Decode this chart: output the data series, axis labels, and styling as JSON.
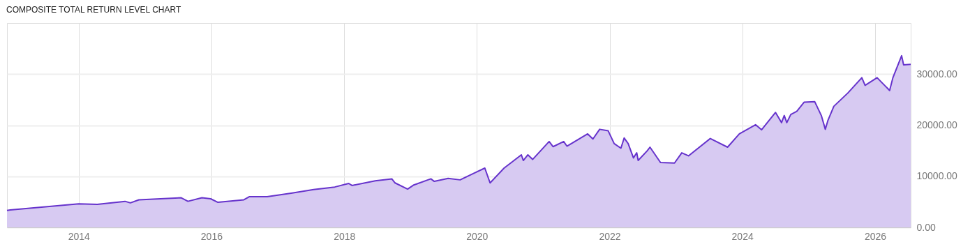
{
  "chart_data": {
    "type": "area",
    "title": "COMPOSITE TOTAL RETURN LEVEL CHART",
    "x": [
      "2012-12-02",
      "2012-12-20",
      "2014-01-01",
      "2014-04-13",
      "2014-09-13",
      "2014-10-12",
      "2014-11-28",
      "2015-07-19",
      "2015-08-25",
      "2015-11-10",
      "2015-12-28",
      "2016-02-06",
      "2016-06-28",
      "2016-07-27",
      "2016-11-03",
      "2017-03-15",
      "2017-07-17",
      "2017-11-10",
      "2018-01-26",
      "2018-02-13",
      "2018-06-21",
      "2018-09-20",
      "2018-10-08",
      "2018-12-16",
      "2019-01-19",
      "2019-04-23",
      "2019-05-12",
      "2019-07-27",
      "2019-10-01",
      "2019-12-16",
      "2020-02-14",
      "2020-03-14",
      "2020-05-30",
      "2020-09-02",
      "2020-09-13",
      "2020-10-08",
      "2020-11-03",
      "2021-02-02",
      "2021-02-24",
      "2021-04-23",
      "2021-05-11",
      "2021-09-02",
      "2021-10-01",
      "2021-11-07",
      "2021-12-24",
      "2022-01-26",
      "2022-03-04",
      "2022-03-22",
      "2022-04-13",
      "2022-05-12",
      "2022-05-30",
      "2022-06-07",
      "2022-07-27",
      "2022-08-11",
      "2022-10-08",
      "2022-12-24",
      "2023-02-02",
      "2023-03-11",
      "2023-07-09",
      "2023-10-12",
      "2023-12-16",
      "2024-03-14",
      "2024-04-16",
      "2024-07-02",
      "2024-08-04",
      "2024-08-19",
      "2024-09-02",
      "2024-09-24",
      "2024-10-27",
      "2024-12-06",
      "2025-02-03",
      "2025-03-11",
      "2025-04-02",
      "2025-04-16",
      "2025-05-19",
      "2025-08-04",
      "2025-10-20",
      "2025-11-07",
      "2026-01-12",
      "2026-03-22",
      "2026-04-09",
      "2026-05-27",
      "2026-06-07",
      "2026-07-16"
    ],
    "series": [
      {
        "color": "#6633cc",
        "values": [
          3300,
          3400,
          4600,
          4500,
          5100,
          4800,
          5400,
          5800,
          5100,
          5800,
          5600,
          4900,
          5400,
          6000,
          6000,
          6700,
          7400,
          7900,
          8600,
          8200,
          9100,
          9500,
          8700,
          7500,
          8300,
          9500,
          9000,
          9600,
          9300,
          10600,
          11600,
          8700,
          11600,
          14200,
          13100,
          14200,
          13300,
          16800,
          15800,
          16800,
          15900,
          18300,
          17300,
          19200,
          18900,
          16400,
          15500,
          17500,
          16400,
          13600,
          14600,
          13100,
          15000,
          15700,
          12700,
          12600,
          14600,
          14000,
          17400,
          15700,
          18300,
          20100,
          19100,
          22500,
          20500,
          21900,
          20500,
          22100,
          22700,
          24500,
          24600,
          21900,
          19200,
          20900,
          23700,
          26300,
          29300,
          27800,
          29300,
          26800,
          29300,
          33600,
          31800,
          31900
        ]
      }
    ],
    "xlim": [
      "2012-12-02",
      "2026-07-16"
    ],
    "xticks": [
      "2014",
      "2016",
      "2018",
      "2020",
      "2022",
      "2024",
      "2026"
    ],
    "ylim": [
      0,
      40000
    ],
    "yticks": [
      {
        "value": 0,
        "label": "0.00"
      },
      {
        "value": 10000,
        "label": "10000.00"
      },
      {
        "value": 20000,
        "label": "20000.00"
      },
      {
        "value": 30000,
        "label": "30000.00"
      }
    ],
    "grid": true
  }
}
